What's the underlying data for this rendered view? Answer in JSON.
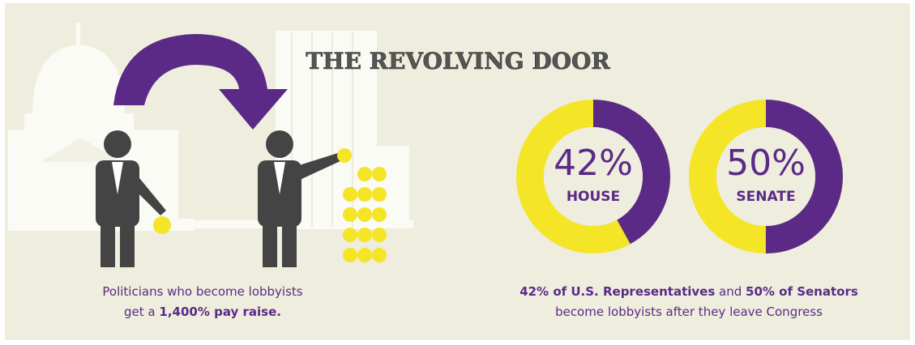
{
  "title": "THE REVOLVING DOOR",
  "left_caption": {
    "line1": "Politicians who become lobbyists",
    "line2_plain": "get a ",
    "line2_bold": "1,400% pay raise."
  },
  "donuts": [
    {
      "name": "HOUSE",
      "value": 42,
      "value_label": "42%"
    },
    {
      "name": "SENATE",
      "value": 50,
      "value_label": "50%"
    }
  ],
  "colors": {
    "filled": "#5b2a86",
    "rest": "#f4e526"
  },
  "right_caption": {
    "bold1": "42% of U.S. Representatives",
    "plain1": " and ",
    "bold2": "50% of Senators",
    "line2": "become lobbyists after they leave Congress"
  }
}
